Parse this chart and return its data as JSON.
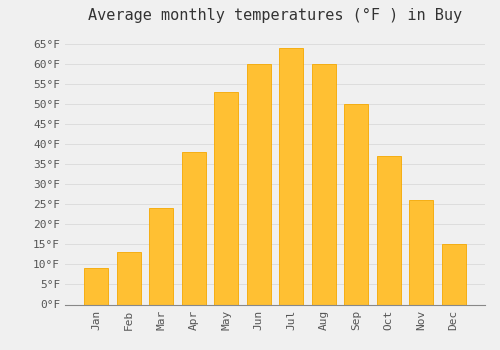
{
  "title": "Average monthly temperatures (°F ) in Buy",
  "months": [
    "Jan",
    "Feb",
    "Mar",
    "Apr",
    "May",
    "Jun",
    "Jul",
    "Aug",
    "Sep",
    "Oct",
    "Nov",
    "Dec"
  ],
  "values": [
    9,
    13,
    24,
    38,
    53,
    60,
    64,
    60,
    50,
    37,
    26,
    15
  ],
  "bar_color": "#FFC033",
  "bar_edge_color": "#F5A800",
  "background_color": "#F0F0F0",
  "grid_color": "#DDDDDD",
  "ylim": [
    0,
    68
  ],
  "yticks": [
    0,
    5,
    10,
    15,
    20,
    25,
    30,
    35,
    40,
    45,
    50,
    55,
    60,
    65
  ],
  "title_fontsize": 11,
  "tick_fontsize": 8,
  "tick_label_color": "#555555",
  "bar_width": 0.75
}
